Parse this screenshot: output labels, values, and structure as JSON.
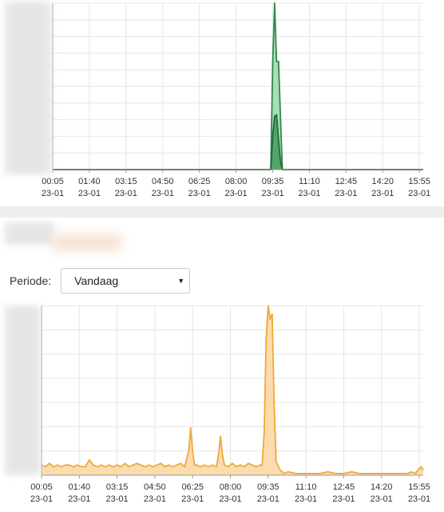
{
  "period": {
    "label": "Periode:",
    "selected": "Vandaag"
  },
  "select_caret_icon": "caret-down-icon",
  "colors": {
    "green_line": "#2e8b4a",
    "green_fill": "#8fd19e",
    "dark_green_line": "#1f6b3a",
    "orange_line": "#f0a838",
    "orange_fill": "#fad6a0",
    "grid": "#e6e6e6",
    "axis": "#999999"
  },
  "chart_data": [
    {
      "type": "area",
      "title": "",
      "x_tick_labels": [
        "00:05",
        "01:40",
        "03:15",
        "04:50",
        "06:25",
        "08:00",
        "09:35",
        "11:10",
        "12:45",
        "14:20",
        "15:55"
      ],
      "x_tick_sublabels": [
        "23-01",
        "23-01",
        "23-01",
        "23-01",
        "23-01",
        "23-01",
        "23-01",
        "23-01",
        "23-01",
        "23-01",
        "23-01"
      ],
      "x_unit": "minutes since 00:05",
      "xlim": [
        0,
        960
      ],
      "ylim": [
        0,
        1
      ],
      "grid": true,
      "series": [
        {
          "x": [
            0,
            560,
            565,
            570,
            575,
            580,
            585,
            590,
            595,
            600,
            960
          ],
          "values": [
            0,
            0,
            0,
            0.65,
            1.0,
            0.65,
            0.65,
            0.32,
            0,
            0,
            0
          ],
          "color": "green"
        },
        {
          "x": [
            0,
            565,
            570,
            575,
            580,
            585,
            590,
            595,
            600,
            960
          ],
          "values": [
            0,
            0,
            0.2,
            0.32,
            0.33,
            0.18,
            0.05,
            0,
            0,
            0
          ],
          "color": "dark_green"
        }
      ]
    },
    {
      "type": "area",
      "title": "",
      "x_tick_labels": [
        "00:05",
        "01:40",
        "03:15",
        "04:50",
        "06:25",
        "08:00",
        "09:35",
        "11:10",
        "12:45",
        "14:20",
        "15:55"
      ],
      "x_tick_sublabels": [
        "23-01",
        "23-01",
        "23-01",
        "23-01",
        "23-01",
        "23-01",
        "23-01",
        "23-01",
        "23-01",
        "23-01",
        "23-01"
      ],
      "x_unit": "minutes since 00:05",
      "xlim": [
        0,
        960
      ],
      "ylim": [
        0,
        1
      ],
      "grid": true,
      "series": [
        {
          "x": [
            0,
            10,
            20,
            30,
            40,
            50,
            60,
            70,
            80,
            90,
            100,
            110,
            120,
            130,
            140,
            150,
            160,
            170,
            180,
            190,
            200,
            210,
            220,
            230,
            240,
            250,
            260,
            270,
            280,
            290,
            300,
            310,
            320,
            330,
            340,
            350,
            360,
            370,
            375,
            380,
            385,
            390,
            400,
            410,
            420,
            430,
            440,
            445,
            450,
            455,
            460,
            470,
            480,
            490,
            500,
            510,
            520,
            530,
            540,
            550,
            555,
            560,
            565,
            570,
            575,
            580,
            585,
            590,
            600,
            610,
            620,
            640,
            660,
            680,
            700,
            720,
            740,
            760,
            780,
            800,
            820,
            840,
            860,
            880,
            900,
            920,
            930,
            940,
            950,
            955,
            960
          ],
          "values": [
            0.06,
            0.05,
            0.07,
            0.05,
            0.06,
            0.05,
            0.06,
            0.06,
            0.05,
            0.06,
            0.05,
            0.05,
            0.09,
            0.06,
            0.05,
            0.06,
            0.05,
            0.06,
            0.05,
            0.06,
            0.05,
            0.07,
            0.05,
            0.06,
            0.07,
            0.06,
            0.05,
            0.06,
            0.05,
            0.06,
            0.07,
            0.05,
            0.06,
            0.05,
            0.06,
            0.07,
            0.05,
            0.14,
            0.28,
            0.14,
            0.06,
            0.06,
            0.05,
            0.06,
            0.05,
            0.06,
            0.05,
            0.12,
            0.23,
            0.12,
            0.06,
            0.05,
            0.07,
            0.05,
            0.06,
            0.05,
            0.07,
            0.06,
            0.05,
            0.06,
            0.06,
            0.25,
            0.8,
            1.0,
            0.92,
            0.95,
            0.42,
            0.08,
            0.03,
            0.01,
            0.02,
            0.01,
            0.01,
            0.01,
            0.01,
            0.02,
            0.01,
            0.01,
            0.02,
            0.01,
            0.01,
            0.01,
            0.01,
            0.01,
            0.01,
            0.01,
            0.02,
            0.01,
            0.04,
            0.05,
            0.03
          ],
          "color": "orange"
        }
      ]
    }
  ]
}
